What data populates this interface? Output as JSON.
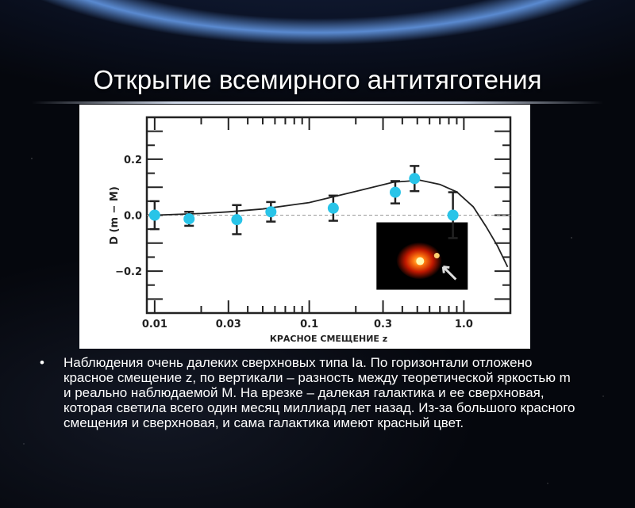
{
  "slide": {
    "title": "Открытие всемирного антитяготения",
    "bullet_text": "Наблюдения очень далеких сверхновых типа Ia. По горизонтали отложено красное смещение z, по вертикали – разность между теоретической яркостью m и реально наблюдаемой M. На врезке – далекая галактика и ее сверхновая, которая светила всего один месяц миллиард лет назад. Из-за большого красного смещения и сверхновая, и сама галактика имеют красный цвет."
  },
  "chart_data": {
    "type": "scatter",
    "title": "",
    "xlabel": "КРАСНОЕ СМЕЩЕНИЕ z",
    "ylabel": "D (m − M)",
    "xscale": "log",
    "xlim": [
      0.0089,
      2.0
    ],
    "ylim": [
      -0.35,
      0.35
    ],
    "xticks": [
      {
        "v": 0.01,
        "label": "0.01"
      },
      {
        "v": 0.03,
        "label": "0.03"
      },
      {
        "v": 0.1,
        "label": "0.1"
      },
      {
        "v": 0.3,
        "label": "0.3"
      },
      {
        "v": 1.0,
        "label": "1.0"
      }
    ],
    "yticks": [
      {
        "v": 0.2,
        "label": "0.2"
      },
      {
        "v": 0.0,
        "label": "0.0"
      },
      {
        "v": -0.2,
        "label": "−0.2"
      }
    ],
    "points": [
      {
        "x": 0.01,
        "y": 0.0,
        "err": 0.05
      },
      {
        "x": 0.0167,
        "y": -0.013,
        "err": 0.025
      },
      {
        "x": 0.034,
        "y": -0.016,
        "err": 0.052
      },
      {
        "x": 0.0565,
        "y": 0.012,
        "err": 0.035
      },
      {
        "x": 0.143,
        "y": 0.025,
        "err": 0.045
      },
      {
        "x": 0.36,
        "y": 0.082,
        "err": 0.04
      },
      {
        "x": 0.48,
        "y": 0.131,
        "err": 0.045
      },
      {
        "x": 0.85,
        "y": 0.0,
        "err": 0.082
      }
    ],
    "model_curve": [
      {
        "x": 0.01,
        "y": 0.0
      },
      {
        "x": 0.02,
        "y": 0.006
      },
      {
        "x": 0.03,
        "y": 0.012
      },
      {
        "x": 0.05,
        "y": 0.022
      },
      {
        "x": 0.1,
        "y": 0.045
      },
      {
        "x": 0.2,
        "y": 0.085
      },
      {
        "x": 0.35,
        "y": 0.118
      },
      {
        "x": 0.52,
        "y": 0.125
      },
      {
        "x": 0.7,
        "y": 0.11
      },
      {
        "x": 0.9,
        "y": 0.083
      },
      {
        "x": 1.15,
        "y": 0.03
      },
      {
        "x": 1.39,
        "y": -0.04
      },
      {
        "x": 1.65,
        "y": -0.11
      },
      {
        "x": 1.92,
        "y": -0.185
      }
    ],
    "reference_line": 0.0,
    "colors": {
      "points": "#29c4e8",
      "curve": "#222222",
      "reference": "#999999"
    },
    "inset": "galaxy-with-supernova-image"
  }
}
